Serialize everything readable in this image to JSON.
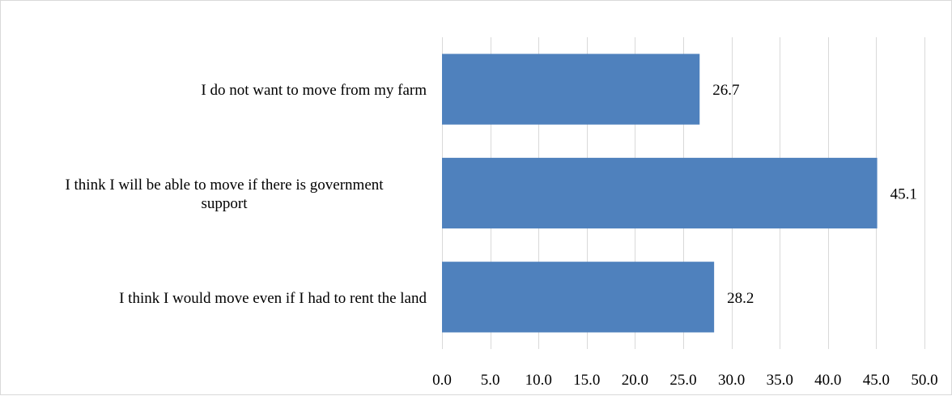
{
  "chart_data": {
    "type": "bar",
    "orientation": "horizontal",
    "categories": [
      "I do not want to move from my farm",
      "I think I will be able to move if there is government support",
      "I think I would move even if I had to rent the land"
    ],
    "category_lines": [
      [
        "I do not want to move from my farm"
      ],
      [
        "I think I will be able to move if there is government",
        "support"
      ],
      [
        "I think I would move even if I had to rent the land"
      ]
    ],
    "values": [
      26.7,
      45.1,
      28.2
    ],
    "data_labels": [
      "26.7",
      "45.1",
      "28.2"
    ],
    "xlim": [
      0,
      50
    ],
    "x_ticks": [
      0,
      5,
      10,
      15,
      20,
      25,
      30,
      35,
      40,
      45,
      50
    ],
    "x_tick_labels": [
      "0.0",
      "5.0",
      "10.0",
      "15.0",
      "20.0",
      "25.0",
      "30.0",
      "35.0",
      "40.0",
      "45.0",
      "50.0"
    ],
    "grid": true,
    "bar_color": "#4f81bd",
    "title": "",
    "xlabel": "",
    "ylabel": ""
  }
}
